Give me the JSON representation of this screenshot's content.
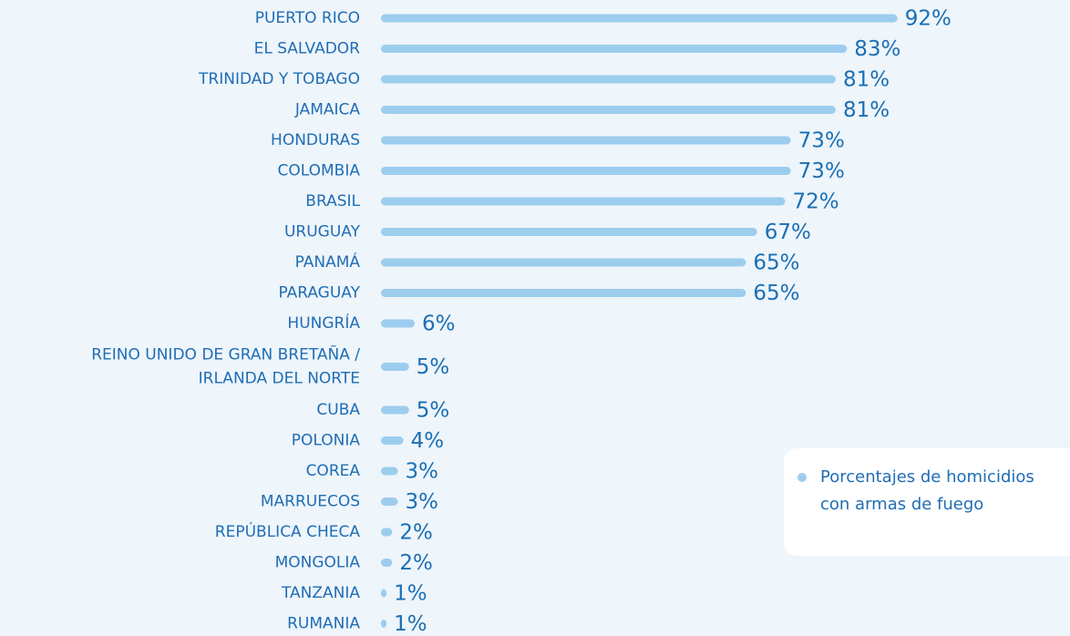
{
  "chart_data": {
    "type": "barh",
    "categories": [
      "PUERTO RICO",
      "EL SALVADOR",
      "TRINIDAD Y TOBAGO",
      "JAMAICA",
      "HONDURAS",
      "COLOMBIA",
      "BRASIL",
      "URUGUAY",
      "PANAMÁ",
      "PARAGUAY",
      "HUNGRÍA",
      "REINO UNIDO DE GRAN BRETAÑA /\nIRLANDA DEL NORTE",
      "CUBA",
      "POLONIA",
      "COREA",
      "MARRUECOS",
      "REPÚBLICA CHECA",
      "MONGOLIA",
      "TANZANIA",
      "RUMANIA"
    ],
    "series": [
      {
        "name": "Porcentajes de homicidios con armas de fuego",
        "color": "#9dcdee",
        "values": [
          92,
          83,
          81,
          81,
          73,
          73,
          72,
          67,
          65,
          65,
          6,
          5,
          5,
          4,
          3,
          3,
          2,
          2,
          1,
          1
        ],
        "value_labels": [
          "92%",
          "83%",
          "81%",
          "81%",
          "73%",
          "73%",
          "72%",
          "67%",
          "65%",
          "65%",
          "6%",
          "5%",
          "5%",
          "4%",
          "3%",
          "3%",
          "2%",
          "2%",
          "1%",
          "1%"
        ]
      }
    ],
    "legend": "lower right"
  }
}
